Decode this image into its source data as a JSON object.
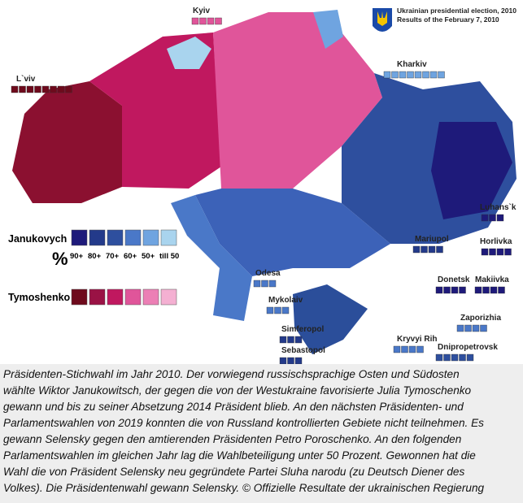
{
  "header": {
    "title": "Ukrainian presidential election, 2010",
    "subtitle": "Results of the February 7, 2010"
  },
  "cities": [
    {
      "label": "Kyiv"
    },
    {
      "label": "L`viv"
    },
    {
      "label": "Kharkiv"
    },
    {
      "label": "Luhans`k"
    },
    {
      "label": "Horlivka"
    },
    {
      "label": "Mariupol"
    },
    {
      "label": "Donetsk"
    },
    {
      "label": "Makiivka"
    },
    {
      "label": "Odesa"
    },
    {
      "label": "Mykolaiv"
    },
    {
      "label": "Simferopol"
    },
    {
      "label": "Sebastopol"
    },
    {
      "label": "Zaporizhia"
    },
    {
      "label": "Kryvyi Rih"
    },
    {
      "label": "Dnipropetrovsk"
    }
  ],
  "legend": {
    "candidates": [
      "Janukovych",
      "Tymoshenko"
    ],
    "symbol": "%",
    "levels": [
      "90+",
      "80+",
      "70+",
      "60+",
      "50+",
      "till 50"
    ]
  },
  "caption": {
    "lines": [
      "Präsidenten-Stichwahl im Jahr 2010. Der vorwiegend russischsprachige Osten und Südosten",
      "wählte Wiktor Janukowitsch, der gegen die von der Westukraine favorisierte Julia Tymoschenko",
      "gewann und bis zu seiner Absetzung 2014 Präsident blieb. An den nächsten Präsidenten- und",
      "Parlamentswahlen von 2019 konnten die von Russland kontrollierten Gebiete nicht teilnehmen. Es",
      "gewann Selensky gegen den amtierenden Präsidenten Petro Poroschenko. An den folgenden",
      "Parlamentswahlen im gleichen Jahr lag die Wahlbeteiligung unter 50 Prozent. Gewonnen hat die",
      "Wahl die von Präsident Selensky neu gegründete Partei Sluha narodu (zu Deutsch Diener des",
      "Volkes). Die Präsidentenwahl gewann Selensky. © Offizielle Resultate der ukrainischen Regierung"
    ]
  }
}
